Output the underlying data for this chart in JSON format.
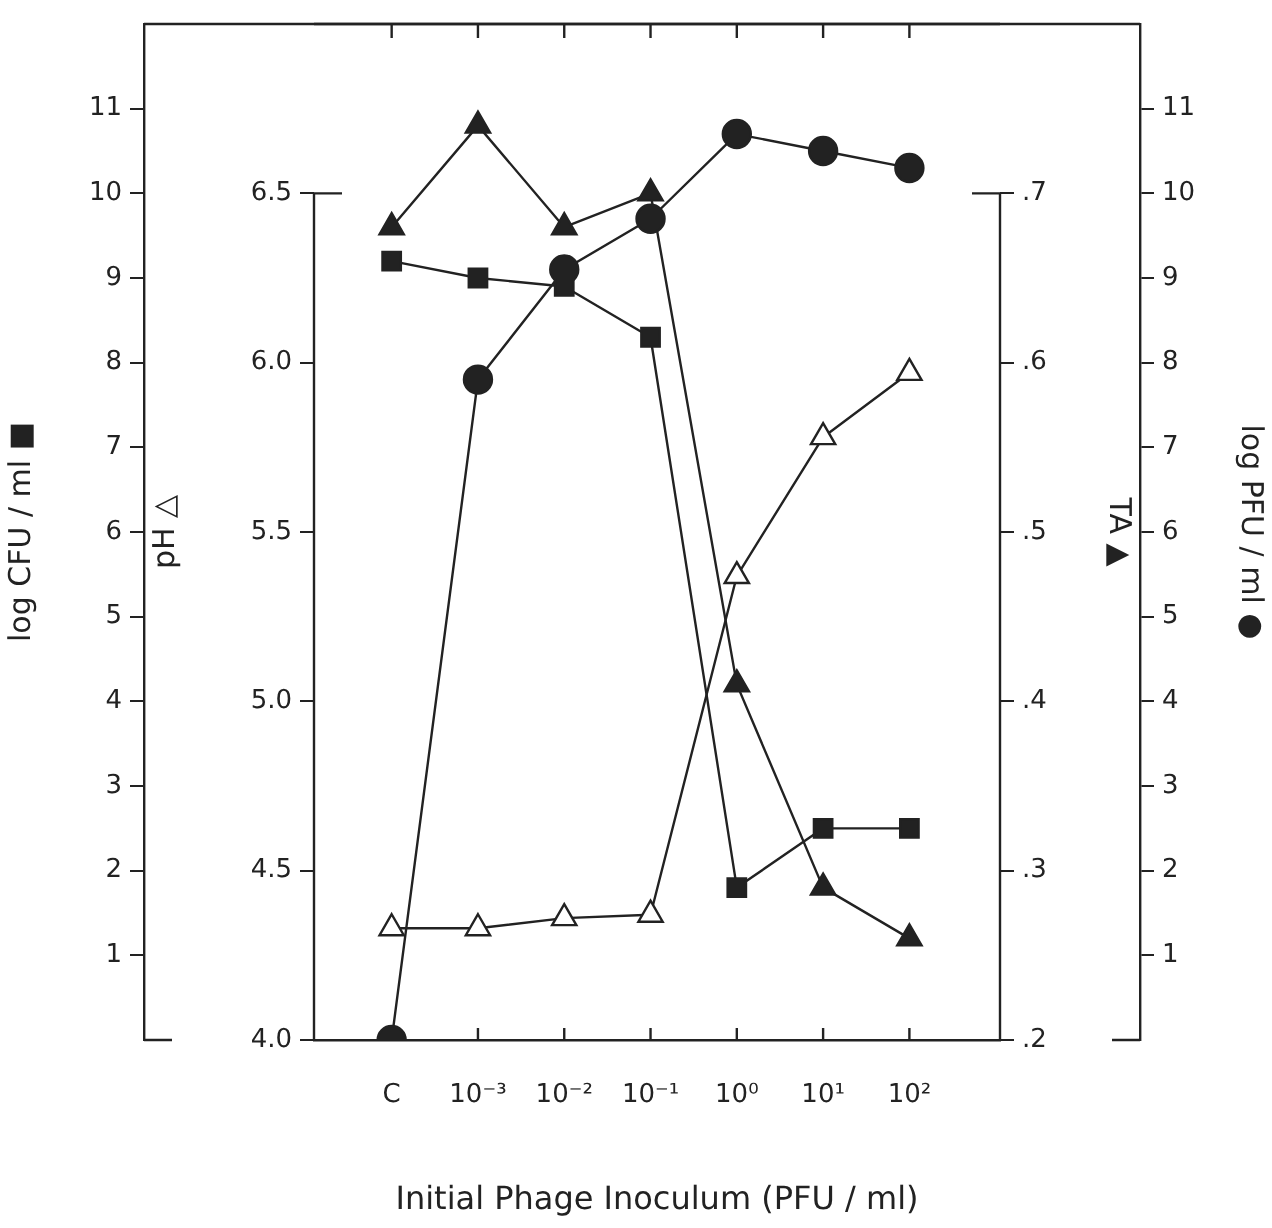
{
  "chart_data": [
    {
      "type": "line",
      "categories": [
        "C",
        "10⁻³",
        "10⁻²",
        "10⁻¹",
        "10⁰",
        "10¹",
        "10²"
      ],
      "xlabel": "Initial Phage Inoculum (PFU / ml)",
      "ylabel": "pH △",
      "y2label": "TA ▲",
      "ylim": [
        4,
        7
      ],
      "yticks": [
        {
          "value": 4,
          "label": "4.0"
        },
        {
          "value": 4.5,
          "label": "4.5"
        },
        {
          "value": 5,
          "label": "5.0"
        },
        {
          "value": 5.5,
          "label": "5.5"
        },
        {
          "value": 6,
          "label": "6.0"
        },
        {
          "value": 6.5,
          "label": "6.5"
        }
      ],
      "y2lim": [
        0.2,
        0.8
      ],
      "y2ticks": [
        {
          "value": 0.2,
          "label": ".2"
        },
        {
          "value": 0.3,
          "label": ".3"
        },
        {
          "value": 0.4,
          "label": ".4"
        },
        {
          "value": 0.5,
          "label": ".5"
        },
        {
          "value": 0.6,
          "label": ".6"
        },
        {
          "value": 0.7,
          "label": ".7"
        }
      ],
      "series": [
        {
          "marker": "triangle",
          "color": "#222222",
          "colors": [
            "#ffffff",
            "#ffffff",
            "#ffffff",
            "#ffffff",
            "#ffffff",
            "#ffffff",
            "#ffffff"
          ],
          "values": [
            4.33,
            4.33,
            4.36,
            4.37,
            5.37,
            5.78,
            5.97
          ]
        },
        {
          "axis": "y2",
          "marker": "triangle",
          "color": "#222222",
          "values": [
            0.68,
            0.74,
            0.68,
            0.7,
            0.41,
            0.29,
            0.26
          ]
        }
      ]
    },
    {
      "type": "line",
      "categories": [
        null,
        null,
        null,
        null,
        null,
        null,
        null
      ],
      "tick_labels": "y",
      "ylabel": "log CFU / ml ■",
      "y2label": "log PFU / ml ●",
      "ylim": [
        0,
        12
      ],
      "yticks": [
        1,
        2,
        3,
        4,
        5,
        6,
        7,
        8,
        9,
        10,
        11
      ],
      "y2lim": [
        0,
        12
      ],
      "y2ticks": [
        1,
        2,
        3,
        4,
        5,
        6,
        7,
        8,
        9,
        10,
        11
      ],
      "series": [
        {
          "marker": "square",
          "color": "#222222",
          "values": [
            9.2,
            9.0,
            8.9,
            8.3,
            1.8,
            2.5,
            2.5
          ]
        },
        {
          "axis": "y2",
          "marker": "circle",
          "color": "#222222",
          "values": [
            0,
            7.8,
            9.1,
            9.7,
            10.7,
            10.5,
            10.3
          ]
        }
      ]
    }
  ]
}
